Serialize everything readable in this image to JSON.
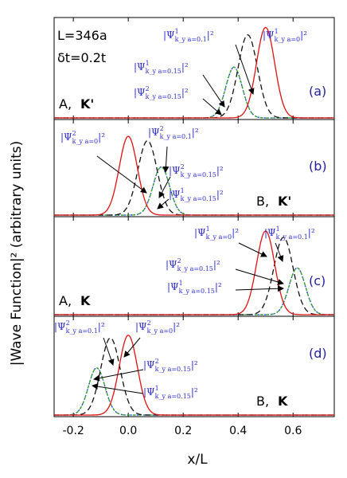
{
  "chart_data": {
    "type": "line",
    "xlabel": "x/L",
    "ylabel": "|Wave Function|² (arbitrary units)",
    "xlim": [
      -0.27,
      0.75
    ],
    "xticks": [
      "-0.2",
      "0.0",
      "0.2",
      "0.4",
      "0.6"
    ],
    "xtick_values": [
      -0.2,
      0.0,
      0.2,
      0.4,
      0.6
    ],
    "info": {
      "size": "L=346a",
      "coupling": "δt=0.2t"
    },
    "colors": {
      "ky0": "#e01010",
      "ky01": "#111111",
      "ky015_1": "#1a3fd6",
      "ky015_2": "#2fa02f"
    },
    "panels": [
      {
        "tag": "(a)",
        "sublattice": "A,",
        "valley": "K'",
        "series": [
          {
            "key": "ky0",
            "center": 0.5,
            "width": 0.033,
            "amp": 0.98
          },
          {
            "key": "ky01",
            "center": 0.435,
            "width": 0.035,
            "amp": 0.9
          },
          {
            "key": "ky015_1",
            "center": 0.385,
            "width": 0.03,
            "amp": 0.55
          },
          {
            "key": "ky015_2",
            "center": 0.385,
            "width": 0.03,
            "amp": 0.55
          }
        ],
        "annotations": [
          {
            "base": "|Ψ",
            "sup": "1",
            "sub": "k_y a=0.1",
            "tail": "|²"
          },
          {
            "base": "|Ψ",
            "sup": "1",
            "sub": "k_y a=0",
            "tail": "|²"
          },
          {
            "base": "|Ψ",
            "sup": "1",
            "sub": "k_y a=0.15",
            "tail": "|²"
          },
          {
            "base": "|Ψ",
            "sup": "2",
            "sub": "k_y a=0.15",
            "tail": "|²"
          }
        ]
      },
      {
        "tag": "(b)",
        "sublattice": "B,",
        "valley": "K'",
        "series": [
          {
            "key": "ky0",
            "center": 0.0,
            "width": 0.033,
            "amp": 0.9
          },
          {
            "key": "ky01",
            "center": 0.07,
            "width": 0.035,
            "amp": 0.85
          },
          {
            "key": "ky015_1",
            "center": 0.12,
            "width": 0.03,
            "amp": 0.55
          },
          {
            "key": "ky015_2",
            "center": 0.12,
            "width": 0.03,
            "amp": 0.55
          }
        ],
        "annotations": [
          {
            "base": "|Ψ",
            "sup": "2",
            "sub": "k_y a=0",
            "tail": "|²"
          },
          {
            "base": "|Ψ",
            "sup": "2",
            "sub": "k_y a=0.1",
            "tail": "|²"
          },
          {
            "base": "|Ψ",
            "sup": "2",
            "sub": "k_y a=0.15",
            "tail": "|²"
          },
          {
            "base": "|Ψ",
            "sup": "1",
            "sub": "k_y a=0.15",
            "tail": "|²"
          }
        ]
      },
      {
        "tag": "(c)",
        "sublattice": "A,",
        "valley": "K",
        "series": [
          {
            "key": "ky0",
            "center": 0.5,
            "width": 0.033,
            "amp": 0.93
          },
          {
            "key": "ky01",
            "center": 0.565,
            "width": 0.035,
            "amp": 0.86
          },
          {
            "key": "ky015_1",
            "center": 0.615,
            "width": 0.03,
            "amp": 0.52
          },
          {
            "key": "ky015_2",
            "center": 0.615,
            "width": 0.03,
            "amp": 0.52
          }
        ],
        "annotations": [
          {
            "base": "|Ψ",
            "sup": "1",
            "sub": "k_y a=0",
            "tail": "|²"
          },
          {
            "base": "|Ψ",
            "sup": "1",
            "sub": "k_y a=0.1",
            "tail": "|²"
          },
          {
            "base": "|Ψ",
            "sup": "2",
            "sub": "k_y a=0.15",
            "tail": "|²"
          },
          {
            "base": "|Ψ",
            "sup": "1",
            "sub": "k_y a=0.15",
            "tail": "|²"
          }
        ]
      },
      {
        "tag": "(d)",
        "sublattice": "B,",
        "valley": "K",
        "series": [
          {
            "key": "ky0",
            "center": 0.0,
            "width": 0.033,
            "amp": 0.88
          },
          {
            "key": "ky01",
            "center": -0.065,
            "width": 0.035,
            "amp": 0.85
          },
          {
            "key": "ky015_1",
            "center": -0.115,
            "width": 0.03,
            "amp": 0.52
          },
          {
            "key": "ky015_2",
            "center": -0.115,
            "width": 0.03,
            "amp": 0.52
          }
        ],
        "annotations": [
          {
            "base": "|Ψ",
            "sup": "2",
            "sub": "k_y a=0.1",
            "tail": "|²"
          },
          {
            "base": "|Ψ",
            "sup": "2",
            "sub": "k_y a=0",
            "tail": "|²"
          },
          {
            "base": "|Ψ",
            "sup": "2",
            "sub": "k_y a=0.15",
            "tail": "|²"
          },
          {
            "base": "|Ψ",
            "sup": "1",
            "sub": "k_y a=0.15",
            "tail": "|²"
          }
        ]
      }
    ]
  }
}
